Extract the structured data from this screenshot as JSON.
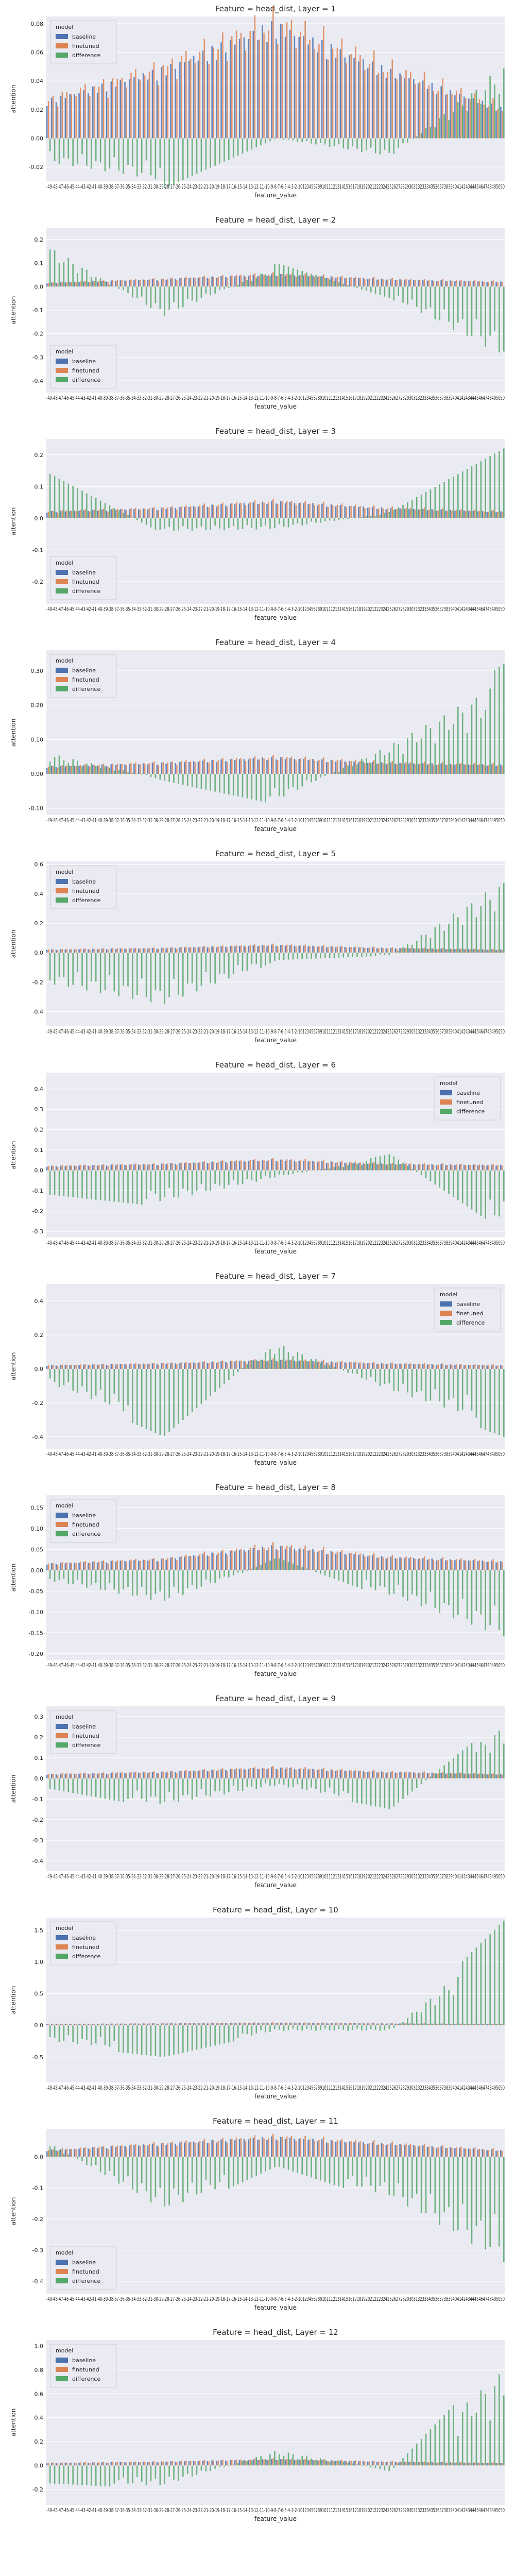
{
  "figure": {
    "colors": {
      "baseline": "#4C72B0",
      "finetuned": "#DD8452",
      "difference": "#55A868",
      "plot_bg": "#EAEAF2",
      "grid": "#ffffff"
    }
  },
  "chart_data": [
    {
      "type": "bar",
      "title": "Feature = head_dist, Layer = 1",
      "xlabel": "feature_value",
      "ylabel": "attention",
      "ylim": [
        -0.03,
        0.085
      ],
      "yticks": [
        -0.02,
        0.0,
        0.02,
        0.04,
        0.06,
        0.08
      ],
      "legend_title": "model",
      "legend_placement": "top-left",
      "series_names": [
        "baseline",
        "finetuned",
        "difference"
      ],
      "baseline_profile": [
        0.025,
        0.045,
        0.075,
        0.045,
        0.02
      ],
      "diff_pattern": [
        -0.02,
        -0.035,
        0.0,
        -0.015,
        0.06
      ],
      "x_ticks_text": "-49-48-47-46-45-44-43-42-41-40-39-38-37-36-35-34-33-32-31-30-29-28-27-26-25-24-23-22-21-20-19-18-17-16-15-14-13-12-11-10-9-8-7-6-5-4-3-2-10123456789101112131415161718192021222324252627282930313233343536373839404142434445464748495050"
    },
    {
      "type": "bar",
      "title": "Feature = head_dist, Layer = 2",
      "xlabel": "feature_value",
      "ylabel": "attention",
      "ylim": [
        -0.45,
        0.25
      ],
      "yticks": [
        -0.4,
        -0.3,
        -0.2,
        -0.1,
        0.0,
        0.1,
        0.2
      ],
      "legend_title": "model",
      "legend_placement": "bottom-left",
      "series_names": [
        "baseline",
        "finetuned",
        "difference"
      ],
      "baseline_profile": [
        0.015,
        0.03,
        0.05,
        0.03,
        0.02
      ],
      "diff_pattern": [
        0.2,
        -0.15,
        0.1,
        -0.05,
        -0.35
      ],
      "x_ticks_text": "-49-48-47-46-45-44-43-42-41-40-39-38-37-36-35-34-33-32-31-30-29-28-27-26-25-24-23-22-21-20-19-18-17-16-15-14-13-12-11-10-9-8-7-6-5-4-3-2-10123456789101112131415161718192021222324252627282930313233343536373839404142434445464748495050"
    },
    {
      "type": "bar",
      "title": "Feature = head_dist, Layer = 3",
      "xlabel": "feature_value",
      "ylabel": "attention",
      "ylim": [
        -0.27,
        0.25
      ],
      "yticks": [
        -0.2,
        -0.1,
        0.0,
        0.1,
        0.2
      ],
      "legend_title": "model",
      "legend_placement": "bottom-left",
      "series_names": [
        "baseline",
        "finetuned",
        "difference"
      ],
      "baseline_profile": [
        0.02,
        0.03,
        0.05,
        0.03,
        0.02
      ],
      "diff_pattern": [
        0.14,
        -0.05,
        -0.04,
        0.02,
        0.22
      ],
      "x_ticks_text": "-49-48-47-46-45-44-43-42-41-40-39-38-37-36-35-34-33-32-31-30-29-28-27-26-25-24-23-22-21-20-19-18-17-16-15-14-13-12-11-10-9-8-7-6-5-4-3-2-10123456789101112131415161718192021222324252627282930313233343536373839404142434445464748495050"
    },
    {
      "type": "bar",
      "title": "Feature = head_dist, Layer = 4",
      "xlabel": "feature_value",
      "ylabel": "attention",
      "ylim": [
        -0.12,
        0.36
      ],
      "yticks": [
        -0.1,
        0.0,
        0.1,
        0.2,
        0.3
      ],
      "legend_title": "model",
      "legend_placement": "top-left",
      "series_names": [
        "baseline",
        "finetuned",
        "difference"
      ],
      "baseline_profile": [
        0.02,
        0.03,
        0.045,
        0.03,
        0.025
      ],
      "diff_pattern": [
        0.07,
        -0.02,
        -0.09,
        0.1,
        0.32
      ],
      "x_ticks_text": "-49-48-47-46-45-44-43-42-41-40-39-38-37-36-35-34-33-32-31-30-29-28-27-26-25-24-23-22-21-20-19-18-17-16-15-14-13-12-11-10-9-8-7-6-5-4-3-2-10123456789101112131415161718192021222324252627282930313233343536373839404142434445464748495050"
    },
    {
      "type": "bar",
      "title": "Feature = head_dist, Layer = 5",
      "xlabel": "feature_value",
      "ylabel": "attention",
      "ylim": [
        -0.5,
        0.62
      ],
      "yticks": [
        -0.4,
        -0.2,
        0.0,
        0.2,
        0.4,
        0.6
      ],
      "legend_title": "model",
      "legend_placement": "top-left",
      "series_names": [
        "baseline",
        "finetuned",
        "difference"
      ],
      "baseline_profile": [
        0.02,
        0.03,
        0.05,
        0.03,
        0.02
      ],
      "diff_pattern": [
        -0.25,
        -0.42,
        -0.05,
        -0.02,
        0.58
      ],
      "x_ticks_text": "-49-48-47-46-45-44-43-42-41-40-39-38-37-36-35-34-33-32-31-30-29-28-27-26-25-24-23-22-21-20-19-18-17-16-15-14-13-12-11-10-9-8-7-6-5-4-3-2-10123456789101112131415161718192021222324252627282930313233343536373839404142434445464748495050"
    },
    {
      "type": "bar",
      "title": "Feature = head_dist, Layer = 6",
      "xlabel": "feature_value",
      "ylabel": "attention",
      "ylim": [
        -0.33,
        0.48
      ],
      "yticks": [
        -0.3,
        -0.2,
        -0.1,
        0.0,
        0.1,
        0.2,
        0.3,
        0.4
      ],
      "legend_title": "model",
      "legend_placement": "top-right",
      "series_names": [
        "baseline",
        "finetuned",
        "difference"
      ],
      "baseline_profile": [
        0.02,
        0.03,
        0.05,
        0.03,
        0.025
      ],
      "diff_pattern": [
        -0.12,
        -0.18,
        -0.04,
        0.08,
        -0.3
      ],
      "x_ticks_text": "-49-48-47-46-45-44-43-42-41-40-39-38-37-36-35-34-33-32-31-30-29-28-27-26-25-24-23-22-21-20-19-18-17-16-15-14-13-12-11-10-9-8-7-6-5-4-3-2-10123456789101112131415161718192021222324252627282930313233343536373839404142434445464748495050"
    },
    {
      "type": "bar",
      "title": "Feature = head_dist, Layer = 7",
      "xlabel": "feature_value",
      "ylabel": "attention",
      "ylim": [
        -0.47,
        0.5
      ],
      "yticks": [
        -0.4,
        -0.2,
        0.0,
        0.2,
        0.4
      ],
      "legend_title": "model",
      "legend_placement": "top-right",
      "series_names": [
        "baseline",
        "finetuned",
        "difference"
      ],
      "baseline_profile": [
        0.02,
        0.03,
        0.05,
        0.03,
        0.02
      ],
      "diff_pattern": [
        -0.1,
        -0.4,
        0.18,
        -0.15,
        -0.4
      ],
      "x_ticks_text": "-49-48-47-46-45-44-43-42-41-40-39-38-37-36-35-34-33-32-31-30-29-28-27-26-25-24-23-22-21-20-19-18-17-16-15-14-13-12-11-10-9-8-7-6-5-4-3-2-10123456789101112131415161718192021222324252627282930313233343536373839404142434445464748495050"
    },
    {
      "type": "bar",
      "title": "Feature = head_dist, Layer = 8",
      "xlabel": "feature_value",
      "ylabel": "attention",
      "ylim": [
        -0.215,
        0.18
      ],
      "yticks": [
        -0.2,
        -0.15,
        -0.1,
        -0.05,
        0.0,
        0.05,
        0.1,
        0.15
      ],
      "legend_title": "model",
      "legend_placement": "top-left",
      "series_names": [
        "baseline",
        "finetuned",
        "difference"
      ],
      "baseline_profile": [
        0.015,
        0.025,
        0.055,
        0.03,
        0.02
      ],
      "diff_pattern": [
        -0.03,
        -0.09,
        0.03,
        -0.07,
        -0.19
      ],
      "x_ticks_text": "-49-48-47-46-45-44-43-42-41-40-39-38-37-36-35-34-33-32-31-30-29-28-27-26-25-24-23-22-21-20-19-18-17-16-15-14-13-12-11-10-9-8-7-6-5-4-3-2-10123456789101112131415161718192021222324252627282930313233343536373839404142434445464748495050"
    },
    {
      "type": "bar",
      "title": "Feature = head_dist, Layer = 9",
      "xlabel": "feature_value",
      "ylabel": "attention",
      "ylim": [
        -0.45,
        0.35
      ],
      "yticks": [
        -0.4,
        -0.3,
        -0.2,
        -0.1,
        0.0,
        0.1,
        0.2,
        0.3
      ],
      "legend_title": "model",
      "legend_placement": "top-left",
      "series_names": [
        "baseline",
        "finetuned",
        "difference"
      ],
      "baseline_profile": [
        0.02,
        0.03,
        0.05,
        0.03,
        0.02
      ],
      "diff_pattern": [
        -0.05,
        -0.15,
        -0.04,
        -0.15,
        0.3
      ],
      "x_ticks_text": "-49-48-47-46-45-44-43-42-41-40-39-38-37-36-35-34-33-32-31-30-29-28-27-26-25-24-23-22-21-20-19-18-17-16-15-14-13-12-11-10-9-8-7-6-5-4-3-2-10123456789101112131415161718192021222324252627282930313233343536373839404142434445464748495050"
    },
    {
      "type": "bar",
      "title": "Feature = head_dist, Layer = 10",
      "xlabel": "feature_value",
      "ylabel": "attention",
      "ylim": [
        -0.9,
        1.7
      ],
      "yticks": [
        -0.5,
        0.0,
        0.5,
        1.0,
        1.5
      ],
      "legend_title": "model",
      "legend_placement": "top-left",
      "series_names": [
        "baseline",
        "finetuned",
        "difference"
      ],
      "baseline_profile": [
        0.02,
        0.03,
        0.04,
        0.03,
        0.02
      ],
      "diff_pattern": [
        -0.3,
        -0.5,
        -0.1,
        -0.1,
        1.65
      ],
      "x_ticks_text": "-49-48-47-46-45-44-43-42-41-40-39-38-37-36-35-34-33-32-31-30-29-28-27-26-25-24-23-22-21-20-19-18-17-16-15-14-13-12-11-10-9-8-7-6-5-4-3-2-10123456789101112131415161718192021222324252627282930313233343536373839404142434445464748495050"
    },
    {
      "type": "bar",
      "title": "Feature = head_dist, Layer = 11",
      "xlabel": "feature_value",
      "ylabel": "attention",
      "ylim": [
        -0.44,
        0.09
      ],
      "yticks": [
        -0.4,
        -0.3,
        -0.2,
        -0.1,
        0.0
      ],
      "legend_title": "model",
      "legend_placement": "bottom-left",
      "series_names": [
        "baseline",
        "finetuned",
        "difference"
      ],
      "baseline_profile": [
        0.02,
        0.04,
        0.06,
        0.04,
        0.02
      ],
      "diff_pattern": [
        0.05,
        -0.2,
        -0.03,
        -0.15,
        -0.4
      ],
      "x_ticks_text": "-49-48-47-46-45-44-43-42-41-40-39-38-37-36-35-34-33-32-31-30-29-28-27-26-25-24-23-22-21-20-19-18-17-16-15-14-13-12-11-10-9-8-7-6-5-4-3-2-10123456789101112131415161718192021222324252627282930313233343536373839404142434445464748495050"
    },
    {
      "type": "bar",
      "title": "Feature = head_dist, Layer = 12",
      "xlabel": "feature_value",
      "ylabel": "attention",
      "ylim": [
        -0.33,
        1.05
      ],
      "yticks": [
        -0.2,
        0.0,
        0.2,
        0.4,
        0.6,
        0.8,
        1.0
      ],
      "legend_title": "model",
      "legend_placement": "top-left",
      "series_names": [
        "baseline",
        "finetuned",
        "difference"
      ],
      "baseline_profile": [
        0.02,
        0.03,
        0.05,
        0.03,
        0.02
      ],
      "diff_pattern": [
        -0.15,
        -0.2,
        0.15,
        -0.05,
        0.95
      ],
      "x_ticks_text": "-49-48-47-46-45-44-43-42-41-40-39-38-37-36-35-34-33-32-31-30-29-28-27-26-25-24-23-22-21-20-19-18-17-16-15-14-13-12-11-10-9-8-7-6-5-4-3-2-10123456789101112131415161718192021222324252627282930313233343536373839404142434445464748495050"
    }
  ]
}
